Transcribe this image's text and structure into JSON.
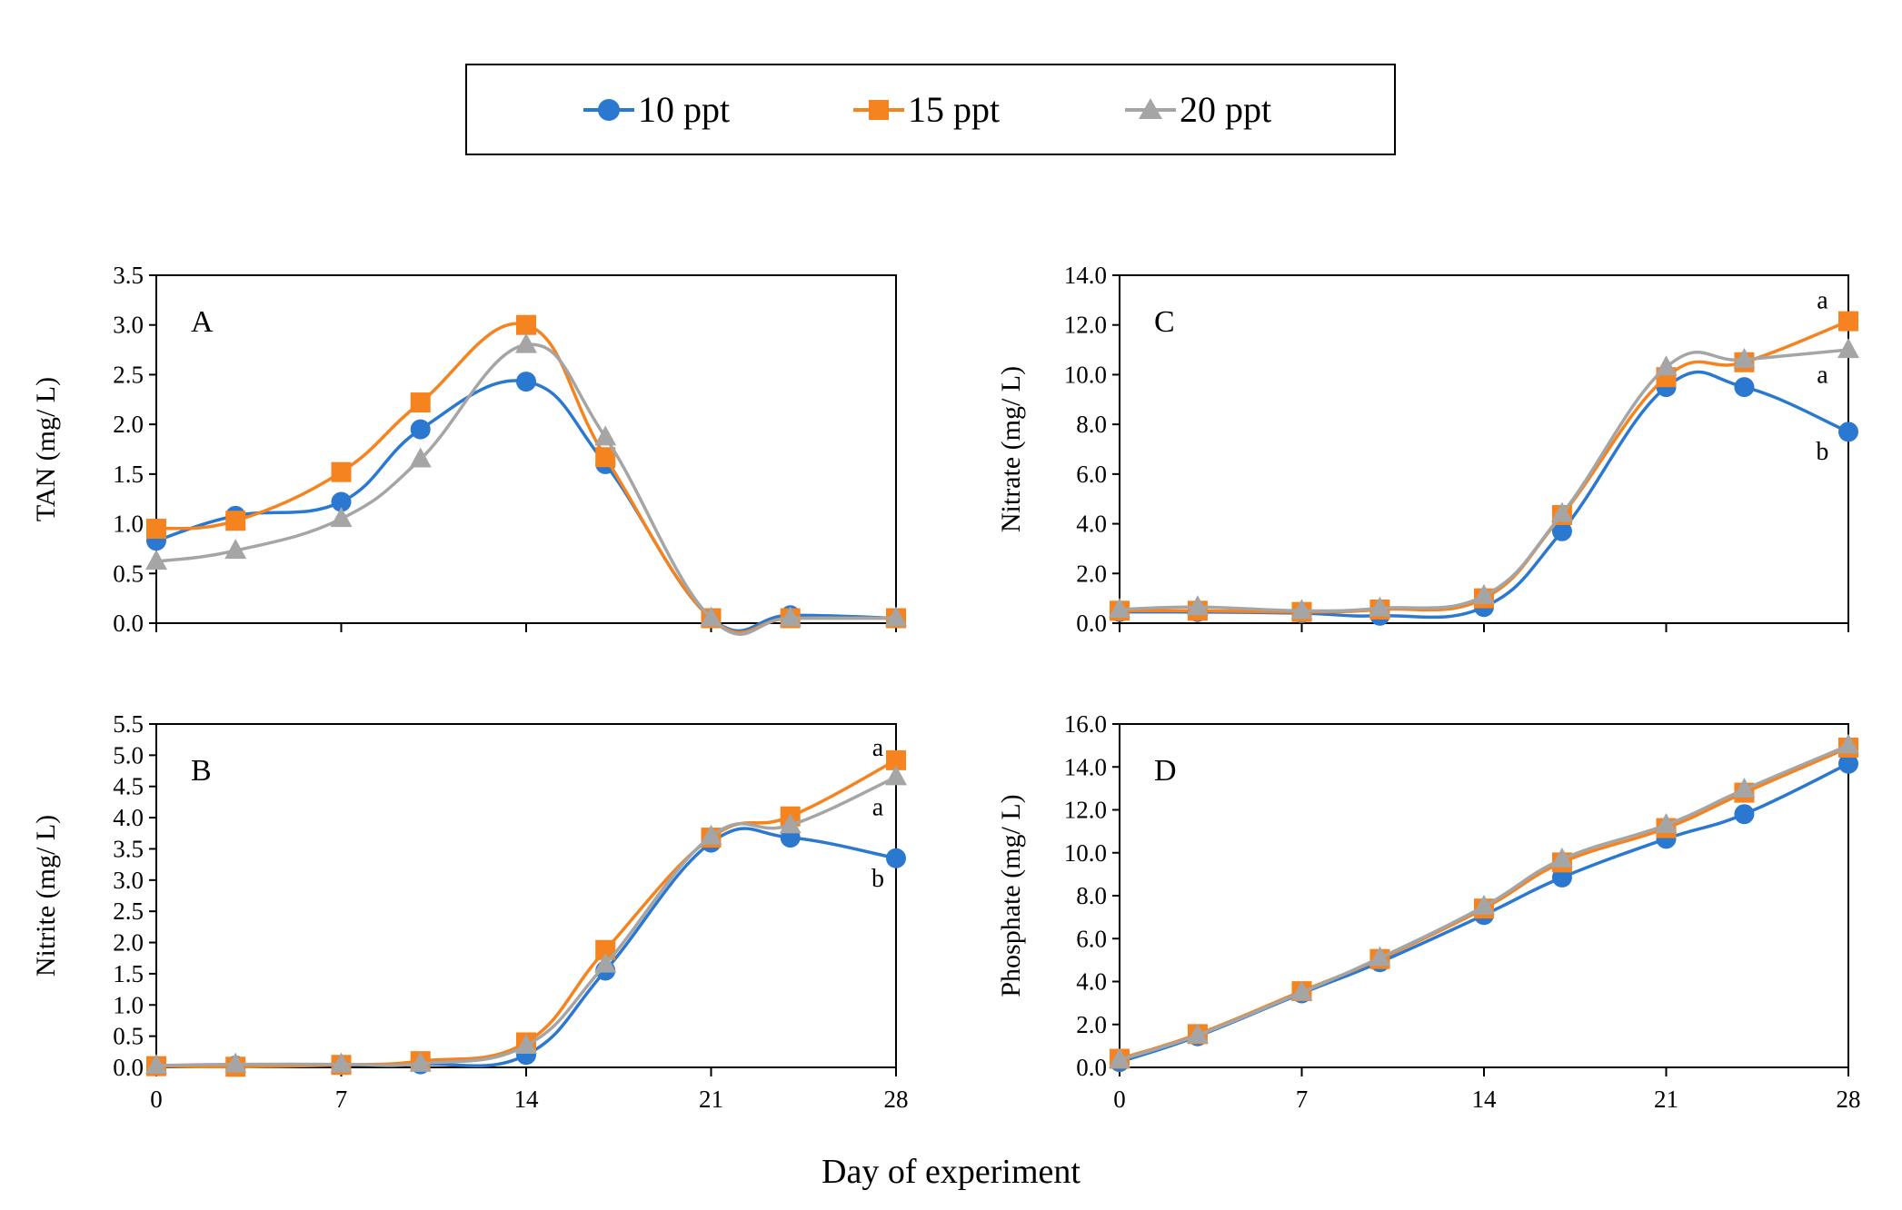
{
  "legend": {
    "series": [
      {
        "name": "10 ppt",
        "color": "#2a78d0",
        "marker": "circle"
      },
      {
        "name": "15 ppt",
        "color": "#f5831f",
        "marker": "square"
      },
      {
        "name": "20 ppt",
        "color": "#a5a5a5",
        "marker": "triangle"
      }
    ]
  },
  "x_axis_title": "Day of experiment",
  "chart_data": [
    {
      "type": "line",
      "panel": "A",
      "ylabel": "TAN (mg/ L)",
      "ylim": [
        0,
        3.5
      ],
      "yticks": [
        "0.0",
        "0.5",
        "1.0",
        "1.5",
        "2.0",
        "2.5",
        "3.0",
        "3.5"
      ],
      "xlim": [
        0,
        28
      ],
      "xticks": [
        "0",
        "7",
        "14",
        "21",
        "28"
      ],
      "show_xtick_labels": false,
      "x": [
        0,
        3,
        7,
        10,
        14,
        17,
        21,
        24,
        28
      ],
      "series": [
        {
          "name": "10 ppt",
          "values": [
            0.83,
            1.08,
            1.22,
            1.95,
            2.43,
            1.6,
            0.05,
            0.08,
            0.05
          ]
        },
        {
          "name": "15 ppt",
          "values": [
            0.95,
            1.03,
            1.52,
            2.22,
            3.0,
            1.67,
            0.05,
            0.05,
            0.05
          ]
        },
        {
          "name": "20 ppt",
          "values": [
            0.62,
            0.73,
            1.05,
            1.65,
            2.8,
            1.87,
            0.05,
            0.05,
            0.05
          ]
        }
      ],
      "annotations": []
    },
    {
      "type": "line",
      "panel": "B",
      "ylabel": "Nitrite (mg/ L)",
      "ylim": [
        0,
        5.5
      ],
      "yticks": [
        "0.0",
        "0.5",
        "1.0",
        "1.5",
        "2.0",
        "2.5",
        "3.0",
        "3.5",
        "4.0",
        "4.5",
        "5.0",
        "5.5"
      ],
      "xlim": [
        0,
        28
      ],
      "xticks": [
        "0",
        "7",
        "14",
        "21",
        "28"
      ],
      "show_xtick_labels": true,
      "x": [
        0,
        3,
        7,
        10,
        14,
        17,
        21,
        24,
        28
      ],
      "series": [
        {
          "name": "10 ppt",
          "values": [
            0.02,
            0.03,
            0.04,
            0.05,
            0.2,
            1.55,
            3.6,
            3.68,
            3.35
          ]
        },
        {
          "name": "15 ppt",
          "values": [
            0.02,
            0.01,
            0.04,
            0.1,
            0.4,
            1.88,
            3.68,
            4.02,
            4.92
          ]
        },
        {
          "name": "20 ppt",
          "values": [
            0.03,
            0.05,
            0.05,
            0.06,
            0.35,
            1.65,
            3.7,
            3.88,
            4.65
          ]
        }
      ],
      "annotations": [
        {
          "text": "a",
          "x": 28,
          "y": 5.12
        },
        {
          "text": "a",
          "x": 28,
          "y": 4.17
        },
        {
          "text": "b",
          "x": 28,
          "y": 3.03
        }
      ]
    },
    {
      "type": "line",
      "panel": "C",
      "ylabel": "Nitrate (mg/ L)",
      "ylim": [
        0,
        14
      ],
      "yticks": [
        "0.0",
        "2.0",
        "4.0",
        "6.0",
        "8.0",
        "10.0",
        "12.0",
        "14.0"
      ],
      "xlim": [
        0,
        28
      ],
      "xticks": [
        "0",
        "7",
        "14",
        "21",
        "28"
      ],
      "show_xtick_labels": false,
      "x": [
        0,
        3,
        7,
        10,
        14,
        17,
        21,
        24,
        28
      ],
      "series": [
        {
          "name": "10 ppt",
          "values": [
            0.45,
            0.45,
            0.4,
            0.3,
            0.65,
            3.7,
            9.5,
            9.5,
            7.7
          ]
        },
        {
          "name": "15 ppt",
          "values": [
            0.5,
            0.5,
            0.45,
            0.55,
            1.0,
            4.35,
            9.9,
            10.5,
            12.15
          ]
        },
        {
          "name": "20 ppt",
          "values": [
            0.55,
            0.65,
            0.5,
            0.6,
            1.1,
            4.4,
            10.3,
            10.6,
            11.0
          ]
        }
      ],
      "annotations": [
        {
          "text": "a",
          "x": 27.7,
          "y": 13.0
        },
        {
          "text": "a",
          "x": 27.7,
          "y": 10.0
        },
        {
          "text": "b",
          "x": 27.7,
          "y": 6.9
        }
      ]
    },
    {
      "type": "line",
      "panel": "D",
      "ylabel": "Phosphate (mg/ L)",
      "ylim": [
        0,
        16
      ],
      "yticks": [
        "0.0",
        "2.0",
        "4.0",
        "6.0",
        "8.0",
        "10.0",
        "12.0",
        "14.0",
        "16.0"
      ],
      "xlim": [
        0,
        28
      ],
      "xticks": [
        "0",
        "7",
        "14",
        "21",
        "28"
      ],
      "show_xtick_labels": true,
      "x": [
        0,
        3,
        7,
        10,
        14,
        17,
        21,
        24,
        28
      ],
      "series": [
        {
          "name": "10 ppt",
          "values": [
            0.25,
            1.45,
            3.45,
            4.9,
            7.1,
            8.85,
            10.65,
            11.8,
            14.15
          ]
        },
        {
          "name": "15 ppt",
          "values": [
            0.4,
            1.55,
            3.55,
            5.05,
            7.4,
            9.55,
            11.15,
            12.8,
            14.9
          ]
        },
        {
          "name": "20 ppt",
          "values": [
            0.35,
            1.5,
            3.5,
            5.1,
            7.5,
            9.7,
            11.3,
            12.95,
            15.0
          ]
        }
      ],
      "annotations": []
    }
  ]
}
